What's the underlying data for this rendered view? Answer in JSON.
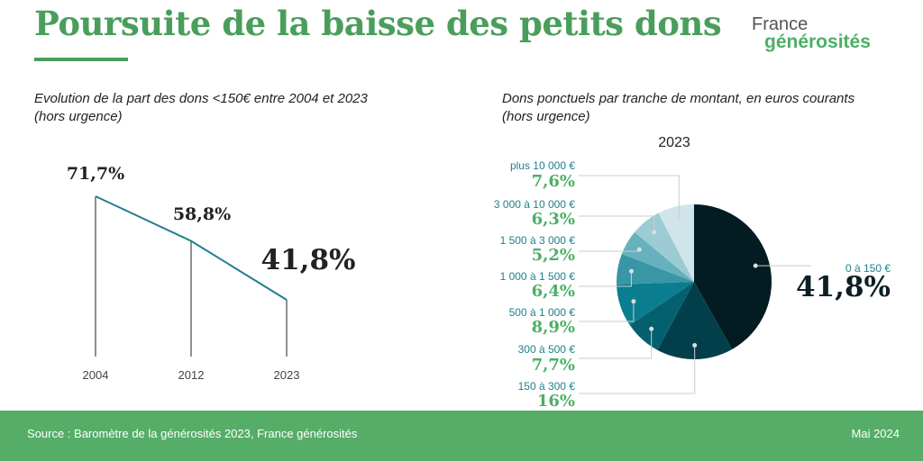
{
  "header": {
    "title": "Poursuite de la baisse des petits dons",
    "logo_line1": "France",
    "logo_line2": "générosités"
  },
  "colors": {
    "green": "#4a9e5c",
    "line": "#1f7f8c"
  },
  "chart_data": [
    {
      "type": "line",
      "subtitle_line1": "Evolution de la part des dons <150€ entre 2004 et 2023",
      "subtitle_line2": "(hors urgence)",
      "categories": [
        "2004",
        "2012",
        "2023"
      ],
      "values": [
        71.7,
        58.8,
        41.8
      ],
      "labels": [
        "71,7%",
        "58,8%",
        "41,8%"
      ],
      "unit": "%"
    },
    {
      "type": "pie",
      "subtitle_line1": "Dons ponctuels par tranche de montant, en euros courants",
      "subtitle_line2": "(hors urgence)",
      "title": "2023",
      "slices": [
        {
          "label": "0 à 150 €",
          "value": 41.8,
          "text": "41,8%",
          "color": "#021c22"
        },
        {
          "label": "150 à 300 €",
          "value": 16,
          "text": "16%",
          "color": "#033f4b"
        },
        {
          "label": "300 à 500 €",
          "value": 7.7,
          "text": "7,7%",
          "color": "#04606f"
        },
        {
          "label": "500 à 1 000 €",
          "value": 8.9,
          "text": "8,9%",
          "color": "#0a7e90"
        },
        {
          "label": "1 000 à 1 500 €",
          "value": 6.4,
          "text": "6,4%",
          "color": "#3896a6"
        },
        {
          "label": "1 500 à 3 000 €",
          "value": 5.2,
          "text": "5,2%",
          "color": "#66b1bd"
        },
        {
          "label": "3 000 à 10 000 €",
          "value": 6.3,
          "text": "6,3%",
          "color": "#9ccbd4"
        },
        {
          "label": "plus 10 000 €",
          "value": 7.6,
          "text": "7,6%",
          "color": "#cfe5ea"
        }
      ]
    }
  ],
  "footer": {
    "source": "Source : Baromètre de la générosités 2023, France générosités",
    "date": "Mai 2024"
  }
}
